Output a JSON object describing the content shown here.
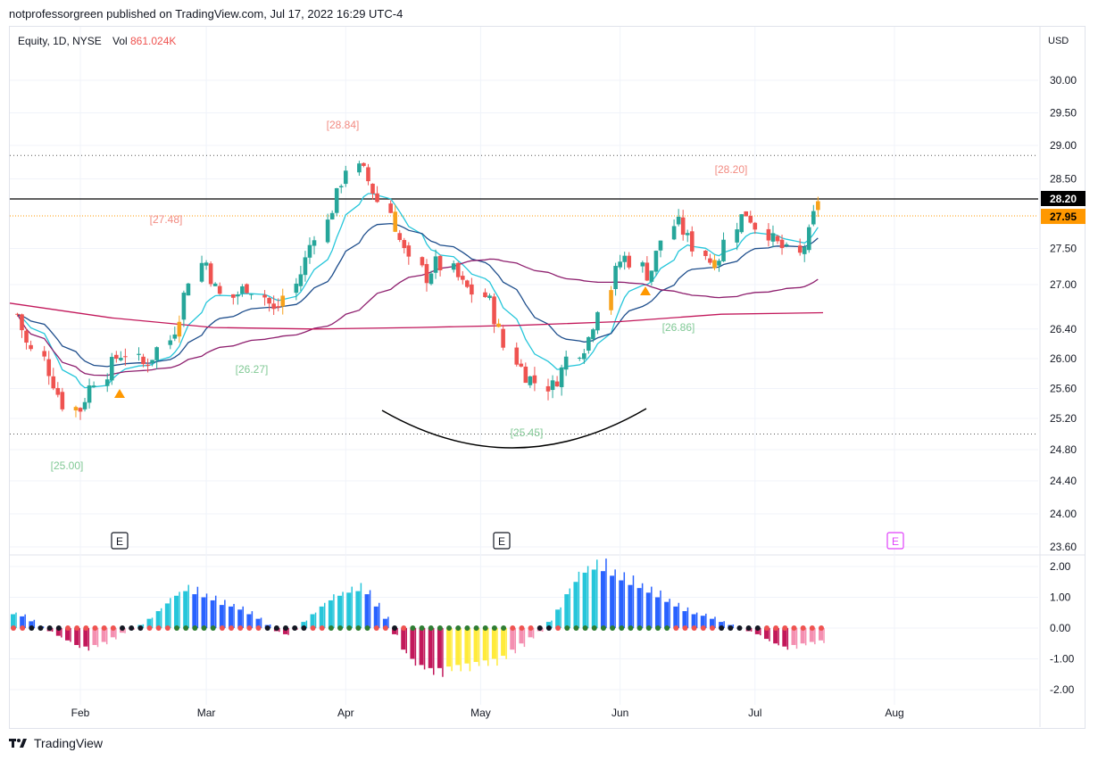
{
  "header": {
    "publisher_line": "notprofessorgreen published on TradingView.com, Jul 17, 2022 16:29 UTC-4"
  },
  "legend": {
    "symbol": "Equity, 1D, NYSE",
    "vol_label": "Vol",
    "vol_value": "861.024K"
  },
  "brand": {
    "name": "TradingView"
  },
  "colors": {
    "up": "#26a69a",
    "down": "#ef5350",
    "highlight": "#f7a21b",
    "ema_fast": "#26c6da",
    "ema_mid": "#1e4e8c",
    "ma_slow": "#8e1f6e",
    "ma_long": "#c2185b",
    "last_price_bg": "#000000",
    "close_bg": "#ff9800"
  },
  "chart_data": [
    {
      "type": "candlestick",
      "title": "Equity, 1D, NYSE",
      "currency": "USD",
      "x_ticks": [
        "Feb",
        "Mar",
        "Apr",
        "May",
        "Jun",
        "Jul",
        "Aug"
      ],
      "y_ticks": [
        30.0,
        29.5,
        29.0,
        28.5,
        27.5,
        27.0,
        26.4,
        26.0,
        25.6,
        25.2,
        24.8,
        24.4,
        24.0,
        23.6
      ],
      "y_range": [
        23.5,
        30.5
      ],
      "last_price": "28.20",
      "close_price": "27.95",
      "resistance_level": 28.85,
      "support_level": 25.0,
      "annotations": [
        {
          "text": "[28.84]",
          "kind": "high"
        },
        {
          "text": "[28.20]",
          "kind": "high"
        },
        {
          "text": "[27.48]",
          "kind": "high"
        },
        {
          "text": "[26.27]",
          "kind": "low"
        },
        {
          "text": "[25.00]",
          "kind": "low"
        },
        {
          "text": "[25.45]",
          "kind": "low"
        },
        {
          "text": "[26.86]",
          "kind": "low"
        }
      ],
      "earnings_markers": [
        "E",
        "E",
        "E"
      ],
      "series_lines": [
        "EMA fast",
        "EMA mid",
        "MA slow",
        "MA long"
      ],
      "close_path": [
        26.6,
        26.2,
        26.0,
        25.7,
        25.4,
        25.3,
        25.6,
        25.8,
        26.0,
        26.1,
        25.9,
        26.0,
        26.2,
        26.5,
        27.0,
        27.4,
        27.0,
        26.8,
        26.9,
        27.0,
        26.8,
        26.6,
        26.9,
        27.2,
        27.6,
        27.9,
        28.3,
        28.7,
        28.6,
        28.3,
        28.0,
        27.6,
        27.3,
        27.1,
        27.3,
        27.2,
        27.0,
        26.9,
        26.8,
        26.4,
        26.0,
        25.8,
        25.7,
        25.6,
        25.8,
        26.1,
        26.2,
        26.6,
        27.1,
        27.4,
        27.3,
        27.1,
        27.5,
        27.9,
        27.7,
        27.5,
        27.3,
        27.4,
        27.9,
        28.0,
        27.8,
        27.6,
        27.5,
        27.4,
        27.7,
        28.2
      ],
      "start_date": "2022-01-18",
      "end_date": "2022-07-15"
    },
    {
      "type": "histogram",
      "title": "Momentum oscillator",
      "y_ticks": [
        2.0,
        1.0,
        0.0,
        -1.0,
        -2.0
      ],
      "y_range": [
        -2.1,
        2.1
      ],
      "values": [
        0.45,
        0.38,
        0.22,
        0.05,
        -0.1,
        -0.25,
        -0.4,
        -0.55,
        -0.6,
        -0.55,
        -0.45,
        -0.3,
        -0.15,
        -0.05,
        0.1,
        0.3,
        0.55,
        0.8,
        1.05,
        1.2,
        1.1,
        1.0,
        0.9,
        0.75,
        0.7,
        0.6,
        0.45,
        0.3,
        0.1,
        -0.1,
        -0.2,
        -0.05,
        0.2,
        0.45,
        0.7,
        0.9,
        1.05,
        1.15,
        1.2,
        1.1,
        0.7,
        0.3,
        -0.2,
        -0.7,
        -1.0,
        -1.2,
        -1.3,
        -1.3,
        -1.25,
        -1.2,
        -1.15,
        -1.1,
        -1.05,
        -1.0,
        -0.9,
        -0.7,
        -0.5,
        -0.3,
        -0.1,
        0.2,
        0.6,
        1.1,
        1.5,
        1.8,
        1.9,
        1.85,
        1.7,
        1.55,
        1.4,
        1.3,
        1.15,
        1.0,
        0.85,
        0.7,
        0.55,
        0.45,
        0.4,
        0.3,
        0.2,
        0.1,
        0.0,
        -0.1,
        -0.2,
        -0.35,
        -0.5,
        -0.6,
        -0.55,
        -0.5,
        -0.45,
        -0.4
      ]
    }
  ]
}
